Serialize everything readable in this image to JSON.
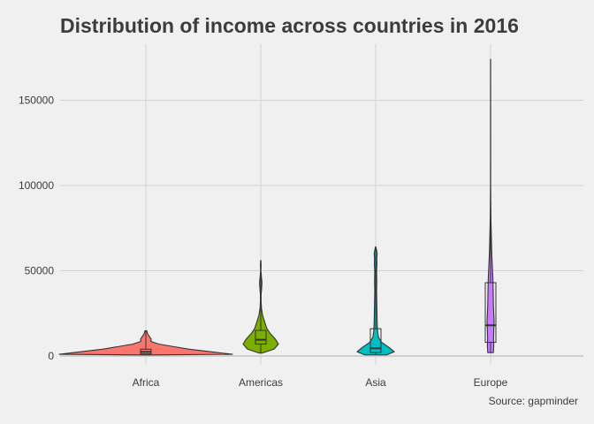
{
  "chart_data": {
    "type": "violin",
    "title": "Distribution of income across countries in 2016",
    "caption": "Source: gapminder",
    "xlabel": "",
    "ylabel": "",
    "categories": [
      "Africa",
      "Americas",
      "Asia",
      "Europe"
    ],
    "ylim": [
      0,
      180000
    ],
    "yticks": [
      0,
      50000,
      100000,
      150000
    ],
    "grid": true,
    "legend": "none",
    "series": [
      {
        "category": "Africa",
        "color": "#f8766d",
        "box": {
          "min": 600,
          "q1": 1200,
          "median": 2400,
          "q3": 4000,
          "max": 8000
        },
        "outliers": [
          11000,
          12500,
          14800
        ],
        "density": [
          [
            600,
            0.05
          ],
          [
            1000,
            1.0
          ],
          [
            2500,
            0.75
          ],
          [
            4000,
            0.5
          ],
          [
            5500,
            0.32
          ],
          [
            7000,
            0.15
          ],
          [
            8500,
            0.06
          ],
          [
            10000,
            0.06
          ],
          [
            11500,
            0.04
          ],
          [
            13000,
            0.02
          ],
          [
            14800,
            0.01
          ]
        ]
      },
      {
        "category": "Americas",
        "color": "#7cae00",
        "box": {
          "min": 2000,
          "q1": 7000,
          "median": 9500,
          "q3": 15000,
          "max": 23000
        },
        "outliers": [
          43000,
          56000
        ],
        "density": [
          [
            1700,
            0.08
          ],
          [
            4000,
            0.75
          ],
          [
            7000,
            1.0
          ],
          [
            10000,
            0.82
          ],
          [
            13000,
            0.55
          ],
          [
            16000,
            0.35
          ],
          [
            20000,
            0.22
          ],
          [
            24000,
            0.1
          ],
          [
            28000,
            0.04
          ],
          [
            32000,
            0.02
          ],
          [
            36000,
            0.02
          ],
          [
            40000,
            0.05
          ],
          [
            43000,
            0.07
          ],
          [
            46000,
            0.04
          ],
          [
            50000,
            0.01
          ],
          [
            53000,
            0.02
          ],
          [
            56000,
            0.01
          ]
        ]
      },
      {
        "category": "Asia",
        "color": "#00bfc4",
        "box": {
          "min": 700,
          "q1": 2000,
          "median": 4500,
          "q3": 16000,
          "max": 35000
        },
        "outliers": [
          48000,
          55000,
          63000
        ],
        "density": [
          [
            700,
            0.6
          ],
          [
            2500,
            1.0
          ],
          [
            5000,
            0.72
          ],
          [
            8000,
            0.32
          ],
          [
            11000,
            0.15
          ],
          [
            15000,
            0.1
          ],
          [
            20000,
            0.08
          ],
          [
            26000,
            0.07
          ],
          [
            32000,
            0.06
          ],
          [
            38000,
            0.05
          ],
          [
            44000,
            0.06
          ],
          [
            50000,
            0.05
          ],
          [
            54000,
            0.07
          ],
          [
            57000,
            0.06
          ],
          [
            60000,
            0.08
          ],
          [
            62000,
            0.05
          ],
          [
            64000,
            0.01
          ]
        ]
      },
      {
        "category": "Europe",
        "color": "#c77cff",
        "box": {
          "min": 2000,
          "q1": 8000,
          "median": 18000,
          "q3": 43000,
          "max": 95000
        },
        "outliers": [
          120000,
          174000
        ],
        "density": [
          [
            2000,
            0.4
          ],
          [
            6000,
            0.45
          ],
          [
            10000,
            0.42
          ],
          [
            15000,
            0.45
          ],
          [
            20000,
            0.5
          ],
          [
            25000,
            0.45
          ],
          [
            30000,
            0.4
          ],
          [
            35000,
            0.38
          ],
          [
            40000,
            0.36
          ],
          [
            45000,
            0.33
          ],
          [
            50000,
            0.28
          ],
          [
            55000,
            0.22
          ],
          [
            60000,
            0.17
          ],
          [
            65000,
            0.13
          ],
          [
            70000,
            0.11
          ],
          [
            75000,
            0.08
          ],
          [
            80000,
            0.05
          ],
          [
            90000,
            0.03
          ],
          [
            100000,
            0.015
          ],
          [
            120000,
            0.012
          ],
          [
            140000,
            0.01
          ],
          [
            160000,
            0.01
          ],
          [
            174000,
            0.006
          ]
        ]
      }
    ]
  }
}
